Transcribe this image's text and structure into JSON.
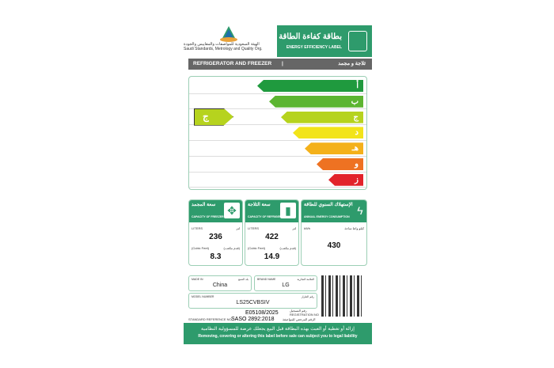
{
  "header": {
    "org_ar": "الهيئة السعودية للمواصفات والمقاييس والجودة",
    "org_en": "Saudi Standards, Metrology and Quality Org.",
    "logo_text": "SASO",
    "title_ar": "بطاقة كفاءة الطاقة",
    "title_en": "ENERGY EFFICIENCY LABEL"
  },
  "category": {
    "en": "REFRIGERATOR AND FREEZER",
    "sep": "|",
    "ar": "ثلاجة و مجمد"
  },
  "scale": {
    "classes": [
      {
        "letter": "أ",
        "color": "#1f9a3e"
      },
      {
        "letter": "ب",
        "color": "#5cb531"
      },
      {
        "letter": "ج",
        "color": "#b6d31e"
      },
      {
        "letter": "د",
        "color": "#f2e41a"
      },
      {
        "letter": "هـ",
        "color": "#f4b11a"
      },
      {
        "letter": "و",
        "color": "#ee7222"
      },
      {
        "letter": "ز",
        "color": "#e2232a"
      }
    ],
    "rating": "ج",
    "rating_color": "#b6d31e"
  },
  "freezer": {
    "title_ar": "سعة المجمد",
    "title_en": "CAPACITY OF FREEZER",
    "unit_en": "LITERS",
    "unit_ar": "لتر",
    "liters": "236",
    "cf_en": "(Cubic Feet)",
    "cf_ar": "(قدم مكعب)",
    "cubic_feet": "8.3"
  },
  "refrigerator": {
    "title_ar": "سعة الثلاجة",
    "title_en": "CAPACITY OF REFRIGERATOR",
    "unit_en": "LITERS",
    "unit_ar": "لتر",
    "liters": "422",
    "cf_en": "(Cubic Feet)",
    "cf_ar": "(قدم مكعب)",
    "cubic_feet": "14.9"
  },
  "energy": {
    "title_ar": "الإستهلاك السنوي للطاقة",
    "title_en": "ANNUAL ENERGY CONSUMPTION",
    "unit_en": "kWh",
    "unit_ar": "كيلو واط ساعة",
    "value": "430"
  },
  "info": {
    "made_in_label": "MADE IN",
    "made_in_label_ar": "بلد الصنع",
    "made_in": "China",
    "brand_label": "BRAND NAME",
    "brand_label_ar": "العلامة التجارية",
    "brand": "LG",
    "model_label": "MODEL NUMBER",
    "model_label_ar": "رقم الطراز",
    "model": "LS25CVBSIV",
    "reg_no": "E05108/2025",
    "reg_label_ar": "رقم التسجيل",
    "reg_label": "REGISTRATION NO",
    "std_label": "STANDARD REFERENCE NO",
    "std": "SASO 2892:2018",
    "std_label_ar": "الرقم المرجعي للمواصفة"
  },
  "footer": {
    "ar": "إزالة أو تغطية أو العبث بهذه البطاقة قبل البيع يجعلك عرضة للمسؤولية النظامية",
    "en": "Removing, covering or altering this label before sale can subject you to legal liability"
  }
}
